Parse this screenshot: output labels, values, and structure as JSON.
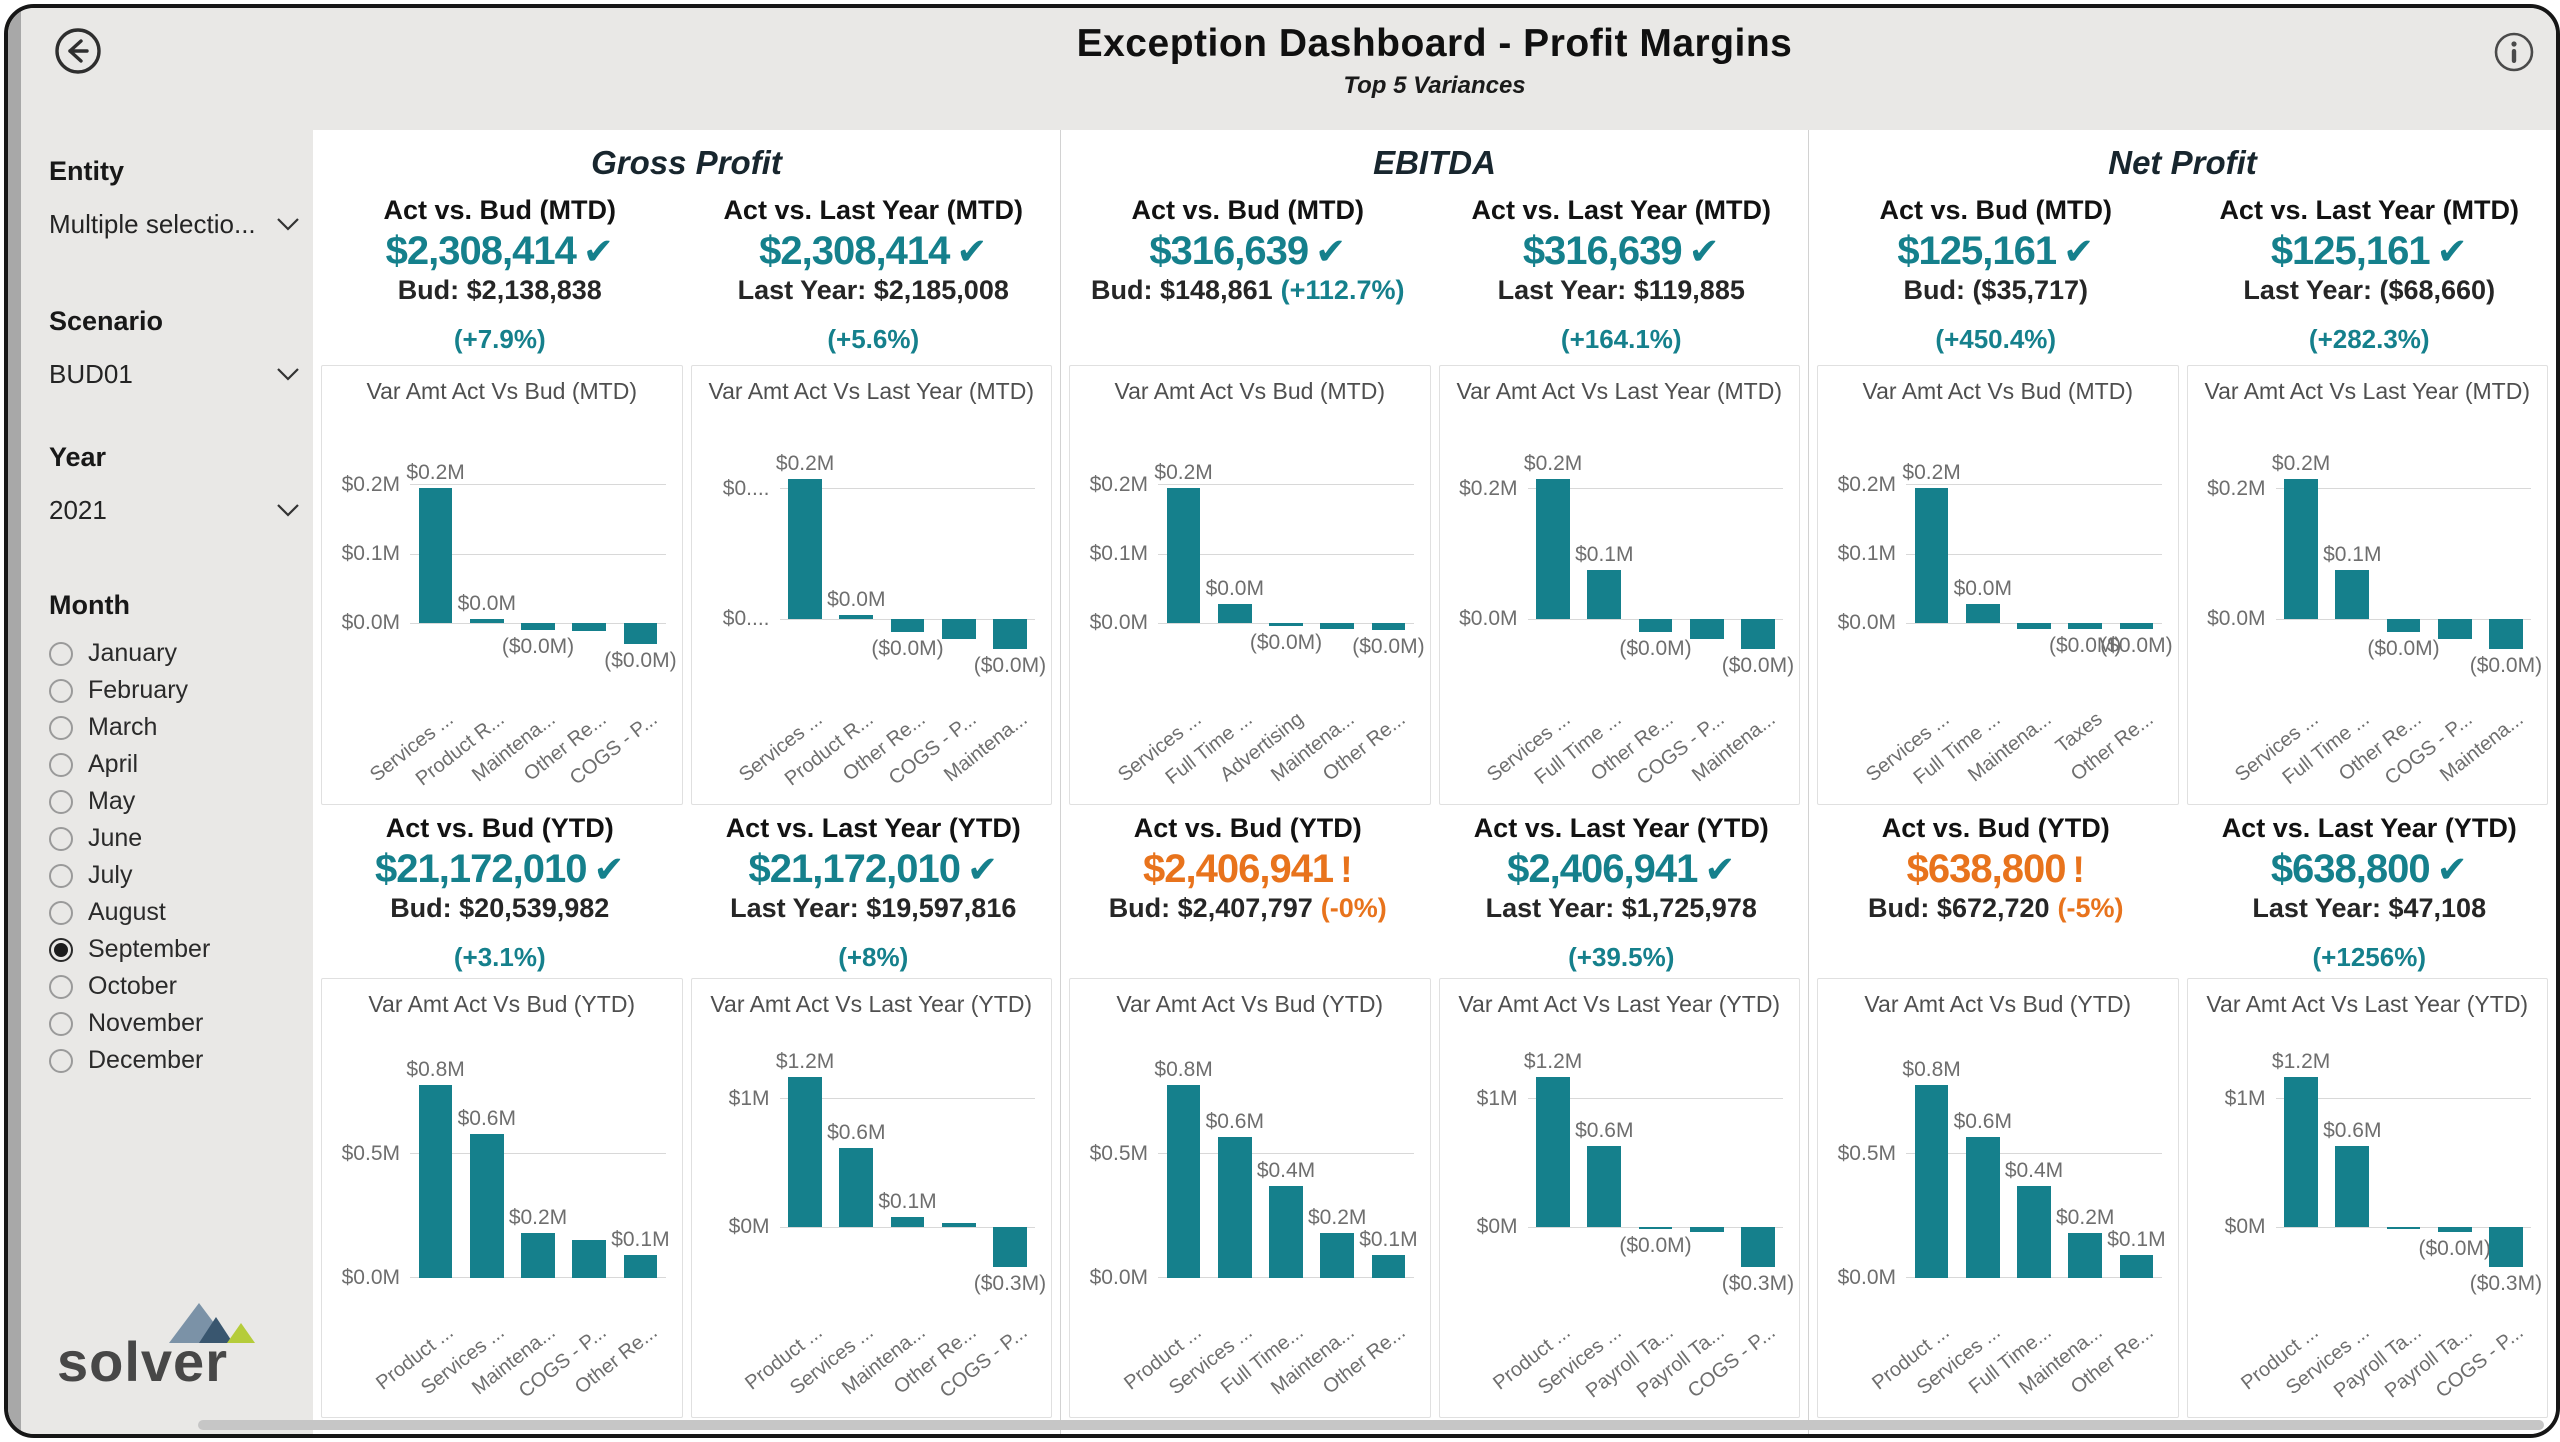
{
  "header": {
    "title": "Exception Dashboard - Profit Margins",
    "subtitle": "Top 5 Variances"
  },
  "symbols": {
    "check": "✔",
    "alert": "!"
  },
  "colors": {
    "teal": "#15808C",
    "orange": "#E8731C",
    "bar": "#15808C"
  },
  "sidebar": {
    "entity_label": "Entity",
    "entity_value": "Multiple selectio...",
    "scenario_label": "Scenario",
    "scenario_value": "BUD01",
    "year_label": "Year",
    "year_value": "2021",
    "month_label": "Month",
    "months": [
      "January",
      "February",
      "March",
      "April",
      "May",
      "June",
      "July",
      "August",
      "September",
      "October",
      "November",
      "December"
    ],
    "selected_month": "September",
    "logo_text": "solver"
  },
  "sections": [
    {
      "name": "Gross Profit",
      "mtd": {
        "kpis": [
          {
            "title": "Act vs. Bud (MTD)",
            "value": "$2,308,414",
            "status": "ok",
            "compare": "Bud: $2,138,838",
            "inline_pct": "",
            "pct": "(+7.9%)",
            "pct_tone": "teal"
          },
          {
            "title": "Act vs. Last Year (MTD)",
            "value": "$2,308,414",
            "status": "ok",
            "compare": "Last Year: $2,185,008",
            "inline_pct": "",
            "pct": "(+5.6%)",
            "pct_tone": "teal"
          }
        ],
        "charts": [
          {
            "type": "bar",
            "title": "Var Amt Act Vs Bud (MTD)",
            "ymin": -0.07,
            "ymax": 0.27,
            "ticks": [
              {
                "y": 0,
                "label": "$0.0M"
              },
              {
                "y": 0.1,
                "label": "$0.1M"
              },
              {
                "y": 0.2,
                "label": "$0.2M"
              }
            ],
            "bars": [
              {
                "category": "Services ...",
                "value": 0.195,
                "label": "$0.2M"
              },
              {
                "category": "Product R...",
                "value": 0.006,
                "label": "$0.0M"
              },
              {
                "category": "Maintena...",
                "value": -0.01,
                "label": "($0.0M)"
              },
              {
                "category": "Other Re...",
                "value": -0.012,
                "label": ""
              },
              {
                "category": "COGS - P...",
                "value": -0.03,
                "label": "($0.0M)"
              }
            ]
          },
          {
            "type": "bar",
            "title": "Var Amt Act Vs Last Year (MTD)",
            "ymin": -0.08,
            "ymax": 0.28,
            "ticks": [
              {
                "y": 0,
                "label": "$0...."
              },
              {
                "y": 0.2,
                "label": "$0...."
              }
            ],
            "bars": [
              {
                "category": "Services ...",
                "value": 0.215,
                "label": "$0.2M"
              },
              {
                "category": "Product R...",
                "value": 0.006,
                "label": "$0.0M"
              },
              {
                "category": "Other Re...",
                "value": -0.02,
                "label": "($0.0M)"
              },
              {
                "category": "COGS - P...",
                "value": -0.03,
                "label": ""
              },
              {
                "category": "Maintena...",
                "value": -0.045,
                "label": "($0.0M)"
              }
            ]
          }
        ]
      },
      "ytd": {
        "kpis": [
          {
            "title": "Act vs. Bud (YTD)",
            "value": "$21,172,010",
            "status": "ok",
            "compare": "Bud: $20,539,982",
            "inline_pct": "",
            "pct": "(+3.1%)",
            "pct_tone": "teal"
          },
          {
            "title": "Act vs. Last Year (YTD)",
            "value": "$21,172,010",
            "status": "ok",
            "compare": "Last Year: $19,597,816",
            "inline_pct": "",
            "pct": "(+8%)",
            "pct_tone": "teal"
          }
        ],
        "charts": [
          {
            "type": "bar",
            "title": "Var Amt Act Vs Bud (YTD)",
            "ymin": -0.03,
            "ymax": 0.92,
            "ticks": [
              {
                "y": 0,
                "label": "$0.0M"
              },
              {
                "y": 0.5,
                "label": "$0.5M"
              }
            ],
            "bars": [
              {
                "category": "Product ...",
                "value": 0.78,
                "label": "$0.8M"
              },
              {
                "category": "Services ...",
                "value": 0.58,
                "label": "$0.6M"
              },
              {
                "category": "Maintena...",
                "value": 0.18,
                "label": "$0.2M"
              },
              {
                "category": "COGS - P...",
                "value": 0.15,
                "label": ""
              },
              {
                "category": "Other Re...",
                "value": 0.09,
                "label": "$0.1M"
              }
            ]
          },
          {
            "type": "bar",
            "title": "Var Amt Act Vs Last Year (YTD)",
            "ymin": -0.45,
            "ymax": 1.38,
            "ticks": [
              {
                "y": 0,
                "label": "$0M"
              },
              {
                "y": 1,
                "label": "$1M"
              }
            ],
            "bars": [
              {
                "category": "Product ...",
                "value": 1.17,
                "label": "$1.2M"
              },
              {
                "category": "Services ...",
                "value": 0.62,
                "label": "$0.6M"
              },
              {
                "category": "Maintena...",
                "value": 0.08,
                "label": "$0.1M"
              },
              {
                "category": "Other Re...",
                "value": 0.03,
                "label": ""
              },
              {
                "category": "COGS - P...",
                "value": -0.31,
                "label": "($0.3M)"
              }
            ]
          }
        ]
      }
    },
    {
      "name": "EBITDA",
      "mtd": {
        "kpis": [
          {
            "title": "Act vs. Bud (MTD)",
            "value": "$316,639",
            "status": "ok",
            "compare": "Bud: $148,861",
            "inline_pct": "(+112.7%)",
            "pct": "",
            "pct_tone": "teal"
          },
          {
            "title": "Act vs. Last Year (MTD)",
            "value": "$316,639",
            "status": "ok",
            "compare": "Last Year: $119,885",
            "inline_pct": "",
            "pct": "(+164.1%)",
            "pct_tone": "teal"
          }
        ],
        "charts": [
          {
            "type": "bar",
            "title": "Var Amt Act Vs Bud (MTD)",
            "ymin": -0.07,
            "ymax": 0.27,
            "ticks": [
              {
                "y": 0,
                "label": "$0.0M"
              },
              {
                "y": 0.1,
                "label": "$0.1M"
              },
              {
                "y": 0.2,
                "label": "$0.2M"
              }
            ],
            "bars": [
              {
                "category": "Services ...",
                "value": 0.195,
                "label": "$0.2M"
              },
              {
                "category": "Full Time ...",
                "value": 0.028,
                "label": "$0.0M"
              },
              {
                "category": "Advertising",
                "value": -0.004,
                "label": "($0.0M)"
              },
              {
                "category": "Maintena...",
                "value": -0.009,
                "label": ""
              },
              {
                "category": "Other Re...",
                "value": -0.01,
                "label": "($0.0M)"
              }
            ]
          },
          {
            "type": "bar",
            "title": "Var Amt Act Vs Last Year (MTD)",
            "ymin": -0.08,
            "ymax": 0.28,
            "ticks": [
              {
                "y": 0,
                "label": "$0.0M"
              },
              {
                "y": 0.2,
                "label": "$0.2M"
              }
            ],
            "bars": [
              {
                "category": "Services ...",
                "value": 0.215,
                "label": "$0.2M"
              },
              {
                "category": "Full Time ...",
                "value": 0.075,
                "label": "$0.1M"
              },
              {
                "category": "Other Re...",
                "value": -0.02,
                "label": "($0.0M)"
              },
              {
                "category": "COGS - P...",
                "value": -0.03,
                "label": ""
              },
              {
                "category": "Maintena...",
                "value": -0.045,
                "label": "($0.0M)"
              }
            ]
          }
        ]
      },
      "ytd": {
        "kpis": [
          {
            "title": "Act vs. Bud (YTD)",
            "value": "$2,406,941",
            "status": "alert",
            "compare": "Bud: $2,407,797",
            "inline_pct": "(-0%)",
            "pct": "",
            "pct_tone": "orange"
          },
          {
            "title": "Act vs. Last Year (YTD)",
            "value": "$2,406,941",
            "status": "ok",
            "compare": "Last Year: $1,725,978",
            "inline_pct": "",
            "pct": "(+39.5%)",
            "pct_tone": "teal"
          }
        ],
        "charts": [
          {
            "type": "bar",
            "title": "Var Amt Act Vs Bud (YTD)",
            "ymin": -0.03,
            "ymax": 0.92,
            "ticks": [
              {
                "y": 0,
                "label": "$0.0M"
              },
              {
                "y": 0.5,
                "label": "$0.5M"
              }
            ],
            "bars": [
              {
                "category": "Product ...",
                "value": 0.78,
                "label": "$0.8M"
              },
              {
                "category": "Services ...",
                "value": 0.57,
                "label": "$0.6M"
              },
              {
                "category": "Full Time...",
                "value": 0.37,
                "label": "$0.4M"
              },
              {
                "category": "Maintena...",
                "value": 0.18,
                "label": "$0.2M"
              },
              {
                "category": "Other Re...",
                "value": 0.09,
                "label": "$0.1M"
              }
            ]
          },
          {
            "type": "bar",
            "title": "Var Amt Act Vs Last Year (YTD)",
            "ymin": -0.45,
            "ymax": 1.38,
            "ticks": [
              {
                "y": 0,
                "label": "$0M"
              },
              {
                "y": 1,
                "label": "$1M"
              }
            ],
            "bars": [
              {
                "category": "Product ...",
                "value": 1.17,
                "label": "$1.2M"
              },
              {
                "category": "Services ...",
                "value": 0.63,
                "label": "$0.6M"
              },
              {
                "category": "Payroll Ta...",
                "value": -0.012,
                "label": "($0.0M)"
              },
              {
                "category": "Payroll Ta...",
                "value": -0.035,
                "label": ""
              },
              {
                "category": "COGS - P...",
                "value": -0.31,
                "label": "($0.3M)"
              }
            ]
          }
        ]
      }
    },
    {
      "name": "Net Profit",
      "mtd": {
        "kpis": [
          {
            "title": "Act vs. Bud (MTD)",
            "value": "$125,161",
            "status": "ok",
            "compare": "Bud: ($35,717)",
            "inline_pct": "",
            "pct": "(+450.4%)",
            "pct_tone": "teal"
          },
          {
            "title": "Act vs. Last Year (MTD)",
            "value": "$125,161",
            "status": "ok",
            "compare": "Last Year: ($68,660)",
            "inline_pct": "",
            "pct": "(+282.3%)",
            "pct_tone": "teal"
          }
        ],
        "charts": [
          {
            "type": "bar",
            "title": "Var Amt Act Vs Bud (MTD)",
            "ymin": -0.07,
            "ymax": 0.27,
            "ticks": [
              {
                "y": 0,
                "label": "$0.0M"
              },
              {
                "y": 0.1,
                "label": "$0.1M"
              },
              {
                "y": 0.2,
                "label": "$0.2M"
              }
            ],
            "bars": [
              {
                "category": "Services ...",
                "value": 0.195,
                "label": "$0.2M"
              },
              {
                "category": "Full Time ...",
                "value": 0.028,
                "label": "$0.0M"
              },
              {
                "category": "Maintena...",
                "value": -0.008,
                "label": ""
              },
              {
                "category": "Taxes",
                "value": -0.008,
                "label": "($0.0M)"
              },
              {
                "category": "Other Re...",
                "value": -0.009,
                "label": "($0.0M)"
              }
            ]
          },
          {
            "type": "bar",
            "title": "Var Amt Act Vs Last Year (MTD)",
            "ymin": -0.08,
            "ymax": 0.28,
            "ticks": [
              {
                "y": 0,
                "label": "$0.0M"
              },
              {
                "y": 0.2,
                "label": "$0.2M"
              }
            ],
            "bars": [
              {
                "category": "Services ...",
                "value": 0.215,
                "label": "$0.2M"
              },
              {
                "category": "Full Time ...",
                "value": 0.075,
                "label": "$0.1M"
              },
              {
                "category": "Other Re...",
                "value": -0.02,
                "label": "($0.0M)"
              },
              {
                "category": "COGS - P...",
                "value": -0.03,
                "label": ""
              },
              {
                "category": "Maintena...",
                "value": -0.045,
                "label": "($0.0M)"
              }
            ]
          }
        ]
      },
      "ytd": {
        "kpis": [
          {
            "title": "Act vs. Bud (YTD)",
            "value": "$638,800",
            "status": "alert",
            "compare": "Bud: $672,720",
            "inline_pct": "(-5%)",
            "pct": "",
            "pct_tone": "orange"
          },
          {
            "title": "Act vs. Last Year (YTD)",
            "value": "$638,800",
            "status": "ok",
            "compare": "Last Year: $47,108",
            "inline_pct": "",
            "pct": "(+1256%)",
            "pct_tone": "teal"
          }
        ],
        "charts": [
          {
            "type": "bar",
            "title": "Var Amt Act Vs Bud (YTD)",
            "ymin": -0.03,
            "ymax": 0.92,
            "ticks": [
              {
                "y": 0,
                "label": "$0.0M"
              },
              {
                "y": 0.5,
                "label": "$0.5M"
              }
            ],
            "bars": [
              {
                "category": "Product ...",
                "value": 0.78,
                "label": "$0.8M"
              },
              {
                "category": "Services ...",
                "value": 0.57,
                "label": "$0.6M"
              },
              {
                "category": "Full Time...",
                "value": 0.37,
                "label": "$0.4M"
              },
              {
                "category": "Maintena...",
                "value": 0.18,
                "label": "$0.2M"
              },
              {
                "category": "Other Re...",
                "value": 0.09,
                "label": "$0.1M"
              }
            ]
          },
          {
            "type": "bar",
            "title": "Var Amt Act Vs Last Year (YTD)",
            "ymin": -0.45,
            "ymax": 1.38,
            "ticks": [
              {
                "y": 0,
                "label": "$0M"
              },
              {
                "y": 1,
                "label": "$1M"
              }
            ],
            "bars": [
              {
                "category": "Product ...",
                "value": 1.17,
                "label": "$1.2M"
              },
              {
                "category": "Services ...",
                "value": 0.63,
                "label": "$0.6M"
              },
              {
                "category": "Payroll Ta...",
                "value": -0.012,
                "label": ""
              },
              {
                "category": "Payroll Ta...",
                "value": -0.035,
                "label": "($0.0M)"
              },
              {
                "category": "COGS - P...",
                "value": -0.31,
                "label": "($0.3M)"
              }
            ]
          }
        ]
      }
    }
  ]
}
